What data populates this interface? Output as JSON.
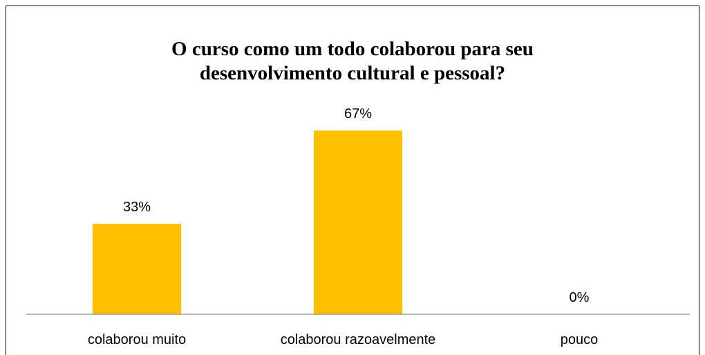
{
  "chart_data": {
    "type": "bar",
    "title_lines": [
      "O curso como um todo colaborou para seu",
      "desenvolvimento cultural e pessoal?"
    ],
    "categories": [
      "colaborou muito",
      "colaborou razoavelmente",
      "pouco"
    ],
    "values": [
      33,
      67,
      0
    ],
    "data_labels": [
      "33%",
      "67%",
      "0%"
    ],
    "unit": "%",
    "ylim": [
      0,
      67
    ],
    "grid": false,
    "legend": "none",
    "bar_color": "#FFC000",
    "axis_color": "#8C8C8C"
  }
}
